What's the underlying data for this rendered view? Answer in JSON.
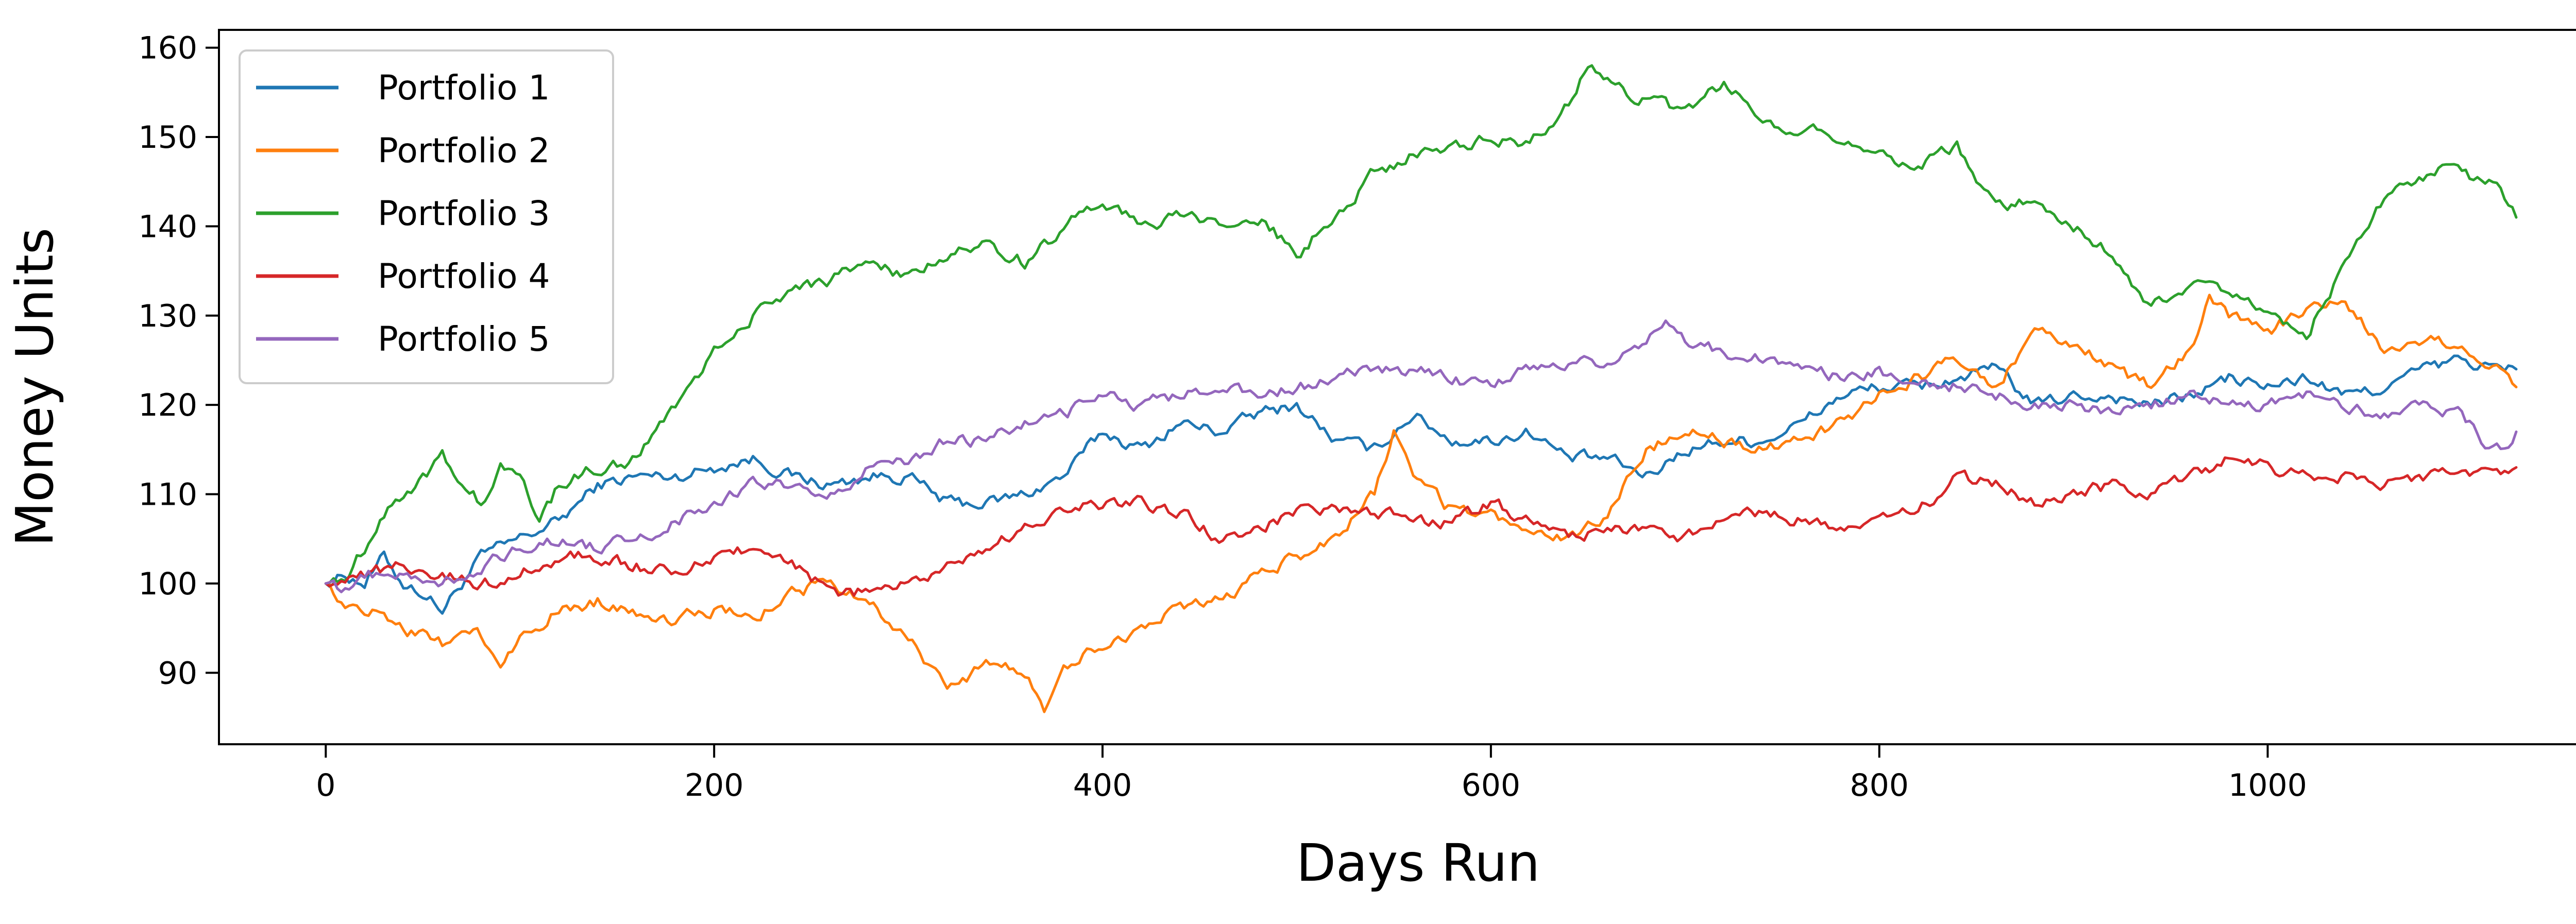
{
  "chart_data": {
    "type": "line",
    "title": "",
    "xlabel": "Days Run",
    "ylabel": "Money Units",
    "xlim": [
      -55,
      1180
    ],
    "ylim": [
      82,
      162
    ],
    "xticks": [
      0,
      200,
      400,
      600,
      800,
      1000
    ],
    "yticks": [
      90,
      100,
      110,
      120,
      130,
      140,
      150,
      160
    ],
    "grid": false,
    "legend_position": "upper-left",
    "series": [
      {
        "name": "Portfolio 1",
        "color": "#1f77b4",
        "x": [
          0,
          10,
          20,
          30,
          40,
          50,
          60,
          70,
          80,
          100,
          120,
          140,
          160,
          180,
          200,
          220,
          240,
          260,
          280,
          300,
          320,
          340,
          360,
          380,
          400,
          420,
          440,
          460,
          480,
          500,
          520,
          540,
          560,
          580,
          600,
          620,
          640,
          660,
          680,
          700,
          720,
          740,
          760,
          780,
          800,
          820,
          840,
          860,
          880,
          900,
          920,
          940,
          960,
          980,
          1000,
          1020,
          1040,
          1060,
          1080,
          1100,
          1120,
          1128
        ],
        "y": [
          100,
          101,
          100,
          103,
          100,
          99,
          97,
          100,
          103,
          105,
          107,
          111,
          112,
          112,
          113,
          114,
          112,
          111,
          112,
          112,
          109,
          109,
          110,
          112,
          117,
          115,
          118,
          117,
          119,
          120,
          116,
          115,
          119,
          116,
          116,
          117,
          114,
          114,
          112,
          115,
          116,
          116,
          118,
          121,
          122,
          122,
          123,
          124,
          120,
          121,
          121,
          120,
          121,
          123,
          122,
          123,
          121,
          122,
          124,
          125,
          124,
          124
        ]
      },
      {
        "name": "Portfolio 2",
        "color": "#ff7f0e",
        "x": [
          0,
          10,
          20,
          30,
          40,
          50,
          60,
          70,
          80,
          90,
          100,
          120,
          140,
          160,
          180,
          200,
          220,
          240,
          260,
          280,
          300,
          320,
          340,
          360,
          370,
          380,
          400,
          420,
          440,
          460,
          480,
          500,
          520,
          540,
          550,
          560,
          580,
          600,
          620,
          640,
          660,
          680,
          700,
          720,
          740,
          760,
          780,
          800,
          820,
          840,
          860,
          880,
          900,
          920,
          940,
          960,
          970,
          980,
          1000,
          1020,
          1040,
          1060,
          1080,
          1100,
          1120,
          1128
        ],
        "y": [
          100,
          98,
          97,
          97,
          95,
          94,
          93,
          95,
          94,
          91,
          94,
          97,
          98,
          97,
          96,
          97,
          96,
          99,
          100,
          98,
          94,
          88,
          91,
          90,
          86,
          91,
          93,
          95,
          97,
          98,
          101,
          103,
          105,
          110,
          117,
          112,
          108,
          108,
          105,
          105,
          108,
          115,
          117,
          116,
          115,
          116,
          118,
          121,
          123,
          125,
          122,
          128,
          127,
          124,
          122,
          126,
          132,
          130,
          128,
          131,
          132,
          126,
          127,
          127,
          124,
          122
        ]
      },
      {
        "name": "Portfolio 3",
        "color": "#2ca02c",
        "x": [
          0,
          10,
          20,
          30,
          40,
          50,
          60,
          70,
          80,
          90,
          100,
          110,
          120,
          140,
          160,
          180,
          200,
          220,
          240,
          260,
          280,
          300,
          320,
          340,
          360,
          380,
          400,
          420,
          440,
          460,
          480,
          500,
          520,
          540,
          560,
          580,
          600,
          620,
          640,
          650,
          660,
          680,
          700,
          720,
          740,
          760,
          780,
          800,
          820,
          840,
          860,
          880,
          900,
          920,
          940,
          960,
          980,
          1000,
          1020,
          1040,
          1060,
          1080,
          1090,
          1100,
          1120,
          1128
        ],
        "y": [
          100,
          101,
          104,
          108,
          110,
          112,
          114,
          111,
          109,
          113,
          112,
          107,
          111,
          113,
          114,
          120,
          126,
          130,
          133,
          134,
          136,
          134,
          137,
          138,
          136,
          140,
          143,
          140,
          141,
          140,
          141,
          137,
          141,
          146,
          148,
          149,
          150,
          149,
          154,
          158,
          156,
          154,
          153,
          156,
          152,
          151,
          150,
          148,
          147,
          149,
          142,
          143,
          140,
          137,
          131,
          133,
          133,
          130,
          128,
          136,
          143,
          145,
          147,
          146,
          144,
          141
        ]
      },
      {
        "name": "Portfolio 4",
        "color": "#d62728",
        "x": [
          0,
          10,
          20,
          40,
          60,
          80,
          100,
          120,
          140,
          160,
          180,
          200,
          220,
          240,
          260,
          280,
          300,
          320,
          340,
          360,
          380,
          400,
          420,
          440,
          460,
          480,
          500,
          520,
          540,
          560,
          580,
          600,
          620,
          640,
          660,
          680,
          700,
          720,
          740,
          760,
          780,
          800,
          820,
          840,
          860,
          880,
          900,
          920,
          940,
          960,
          980,
          1000,
          1020,
          1040,
          1060,
          1080,
          1100,
          1120,
          1128
        ],
        "y": [
          100,
          101,
          101,
          102,
          101,
          100,
          101,
          103,
          103,
          102,
          101,
          103,
          104,
          102,
          99,
          99,
          100,
          102,
          104,
          106,
          108,
          109,
          109,
          108,
          105,
          106,
          108,
          108,
          108,
          107,
          107,
          109,
          107,
          105,
          106,
          106,
          105,
          107,
          108,
          107,
          106,
          107,
          108,
          112,
          111,
          109,
          110,
          111,
          110,
          112,
          114,
          113,
          112,
          112,
          111,
          112,
          113,
          112,
          113
        ]
      },
      {
        "name": "Portfolio 5",
        "color": "#9467bd",
        "x": [
          0,
          10,
          20,
          40,
          60,
          80,
          100,
          120,
          140,
          160,
          180,
          200,
          220,
          240,
          260,
          280,
          300,
          320,
          340,
          360,
          380,
          400,
          420,
          440,
          460,
          480,
          500,
          520,
          540,
          560,
          580,
          600,
          620,
          640,
          660,
          680,
          690,
          700,
          720,
          740,
          760,
          780,
          800,
          820,
          840,
          860,
          880,
          900,
          920,
          940,
          960,
          980,
          1000,
          1020,
          1040,
          1060,
          1080,
          1100,
          1110,
          1120,
          1128
        ],
        "y": [
          100,
          99,
          101,
          101,
          100,
          102,
          104,
          105,
          104,
          105,
          107,
          109,
          111,
          111,
          110,
          113,
          114,
          116,
          116,
          118,
          119,
          121,
          120,
          121,
          122,
          121,
          122,
          123,
          124,
          124,
          123,
          122,
          124,
          125,
          125,
          127,
          129,
          127,
          126,
          125,
          124,
          123,
          124,
          122,
          122,
          121,
          120,
          120,
          119,
          120,
          121,
          120,
          120,
          121,
          120,
          119,
          120,
          119,
          116,
          115,
          117
        ]
      }
    ]
  }
}
